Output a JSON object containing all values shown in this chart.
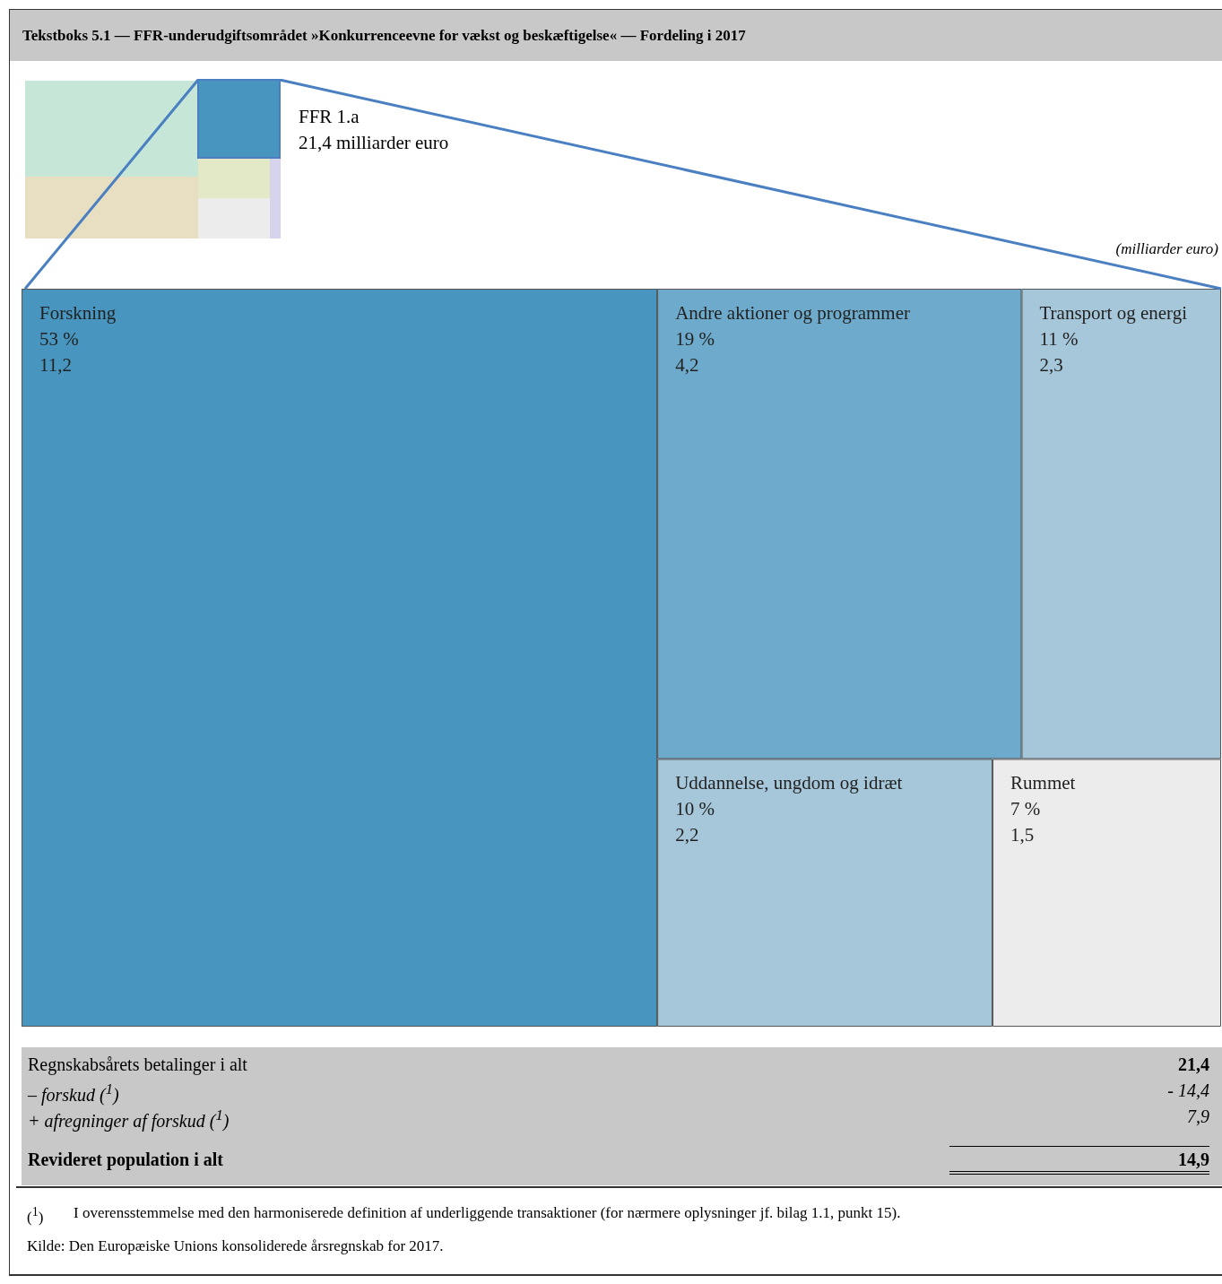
{
  "chart_data": {
    "type": "other",
    "title": "Tekstboks 5.1 — FFR-underudgiftsområdet »Konkurrenceevne for vækst og beskæftigelse« — Fordeling i 2017",
    "categories": [
      "Forskning",
      "Andre aktioner og programmer",
      "Transport og energi",
      "Uddannelse, ungdom og idræt",
      "Rummet"
    ],
    "series": [
      {
        "values": [
          53,
          19,
          11,
          10,
          7
        ],
        "value_labels": [
          "53 %",
          "19 %",
          "11 %",
          "10 %",
          "7 %"
        ],
        "colors": [
          "#4895c0",
          "#6eaacb",
          "#a6c7da",
          "#a6c7da",
          "#ececec"
        ]
      },
      {
        "values": [
          11.2,
          4.2,
          2.3,
          2.2,
          1.5
        ],
        "value_labels": [
          "11,2",
          "4,2",
          "2,3",
          "2,2",
          "1,5"
        ],
        "colors": [
          "#4895c0",
          "#6eaacb",
          "#a6c7da",
          "#a6c7da",
          "#ececec"
        ]
      }
    ],
    "annotations": [
      "FFR 1.a",
      "21,4 milliarder euro",
      "(milliarder euro)",
      "Regnskabsårets betalinger i alt",
      "21,4",
      "– forskud ($^{1}$)",
      "- 14,4",
      "+ afregninger af forskud ($^{1}$)",
      "7,9",
      "Revideret population i alt",
      "14,9",
      "($^{1}$)",
      "I overensstemmelse med den harmoniserede definition af underliggende transaktioner (for nærmere oplysninger jf. bilag 1.1, punkt 15).",
      "Kilde: Den Europæiske Unions konsoliderede årsregnskab for 2017."
    ]
  }
}
